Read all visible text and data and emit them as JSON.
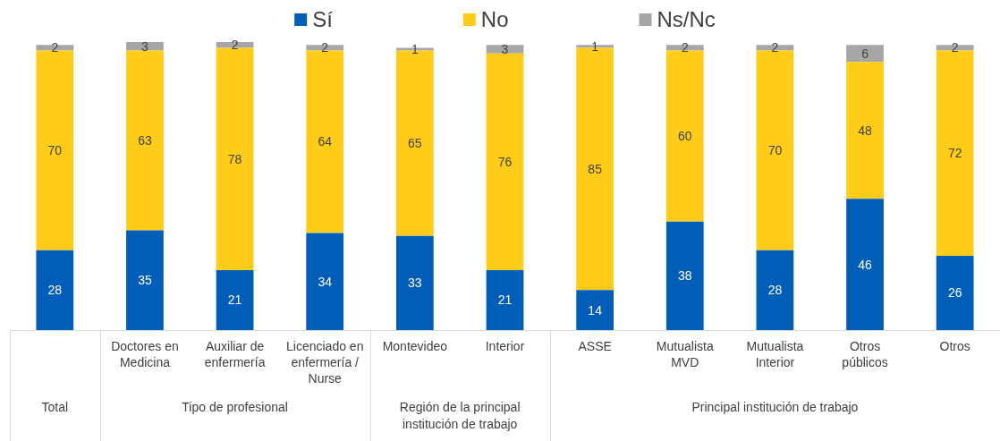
{
  "chart_data": {
    "type": "bar",
    "stacked": true,
    "categories": [
      null,
      "Doctores en Medicina",
      "Auxiliar de enfermería",
      "Licenciado en enfermería / Nurse",
      "Montevideo",
      "Interior",
      "ASSE",
      "Mutualista MVD",
      "Mutualista Interior",
      "Otros públicos",
      "Otros"
    ],
    "series": [
      {
        "name": "Sí",
        "color": "#005eb8",
        "values": [
          28,
          35,
          21,
          34,
          33,
          21,
          14,
          38,
          28,
          46,
          26
        ]
      },
      {
        "name": "No",
        "color": "#ffcc1a",
        "values": [
          70,
          63,
          78,
          64,
          65,
          76,
          85,
          60,
          70,
          48,
          72
        ]
      },
      {
        "name": "Ns/Nc",
        "color": "#a6a6a6",
        "values": [
          2,
          3,
          2,
          2,
          1,
          3,
          1,
          2,
          2,
          6,
          2
        ]
      }
    ],
    "annotations": [
      "Total",
      "Tipo de profesional",
      "Región de la principal institución de trabajo",
      "Principal institución de trabajo"
    ],
    "data_labels": true,
    "legend": "top",
    "tick_labels": "x"
  }
}
